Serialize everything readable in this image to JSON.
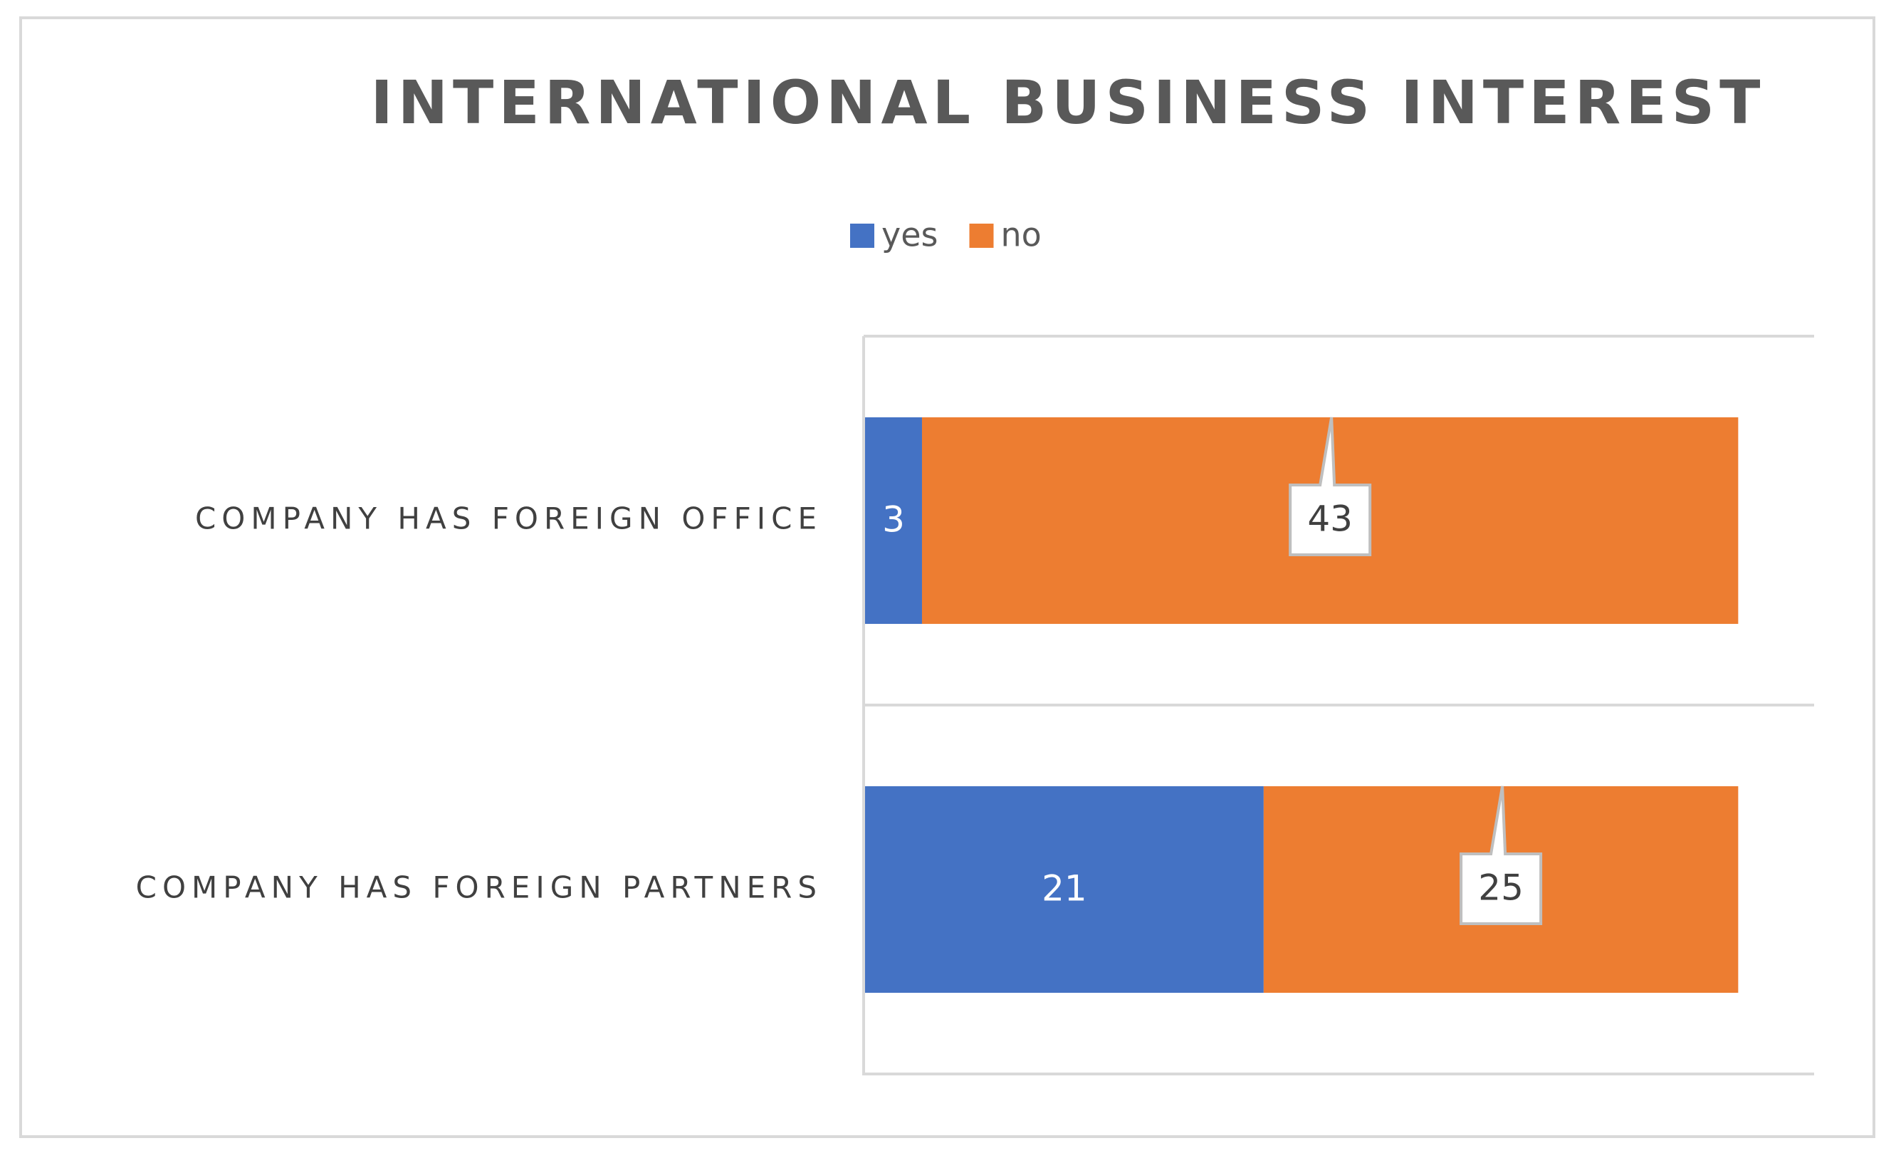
{
  "chart_data": {
    "type": "stacked-bar-horizontal",
    "title": "INTERNATIONAL BUSINESS INTEREST",
    "categories": [
      "COMPANY HAS FOREIGN OFFICE",
      "COMPANY HAS FOREIGN PARTNERS"
    ],
    "series": [
      {
        "name": "yes",
        "color": "#4472c4",
        "values": [
          3,
          21
        ]
      },
      {
        "name": "no",
        "color": "#ed7d31",
        "values": [
          43,
          25
        ]
      }
    ],
    "xlim": [
      0,
      50
    ],
    "legend": "top"
  }
}
